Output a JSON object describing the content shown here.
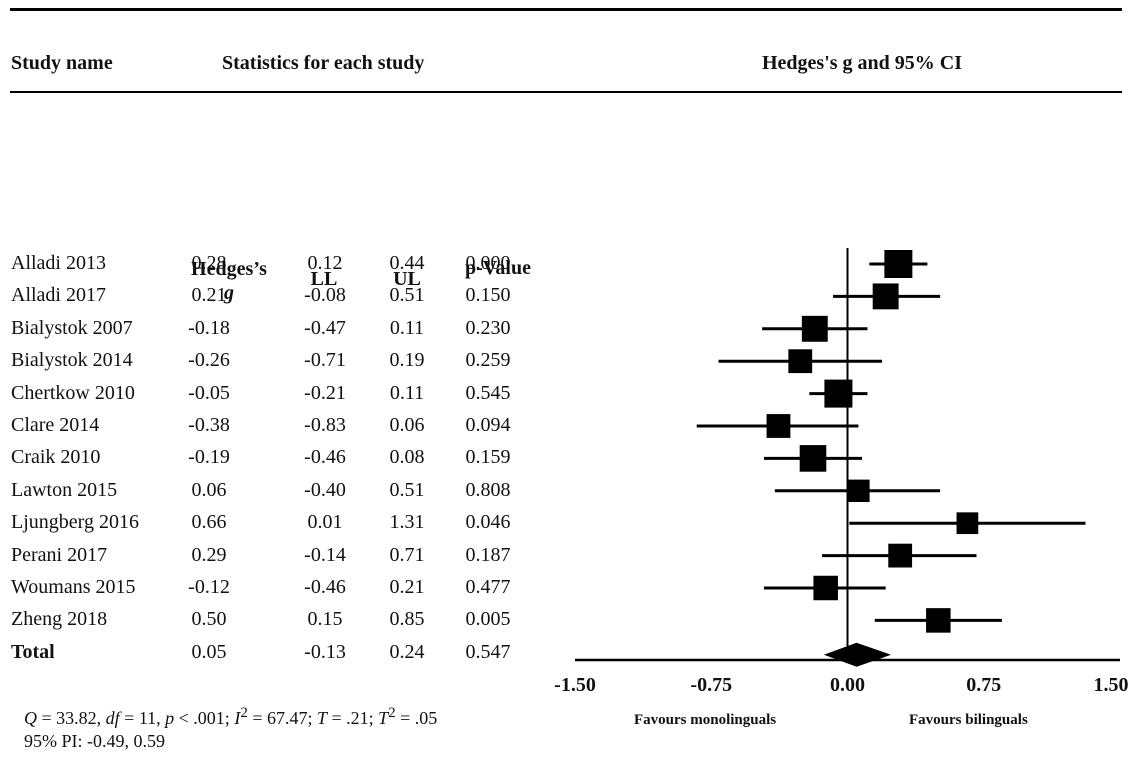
{
  "headers": {
    "study_name": "Study name",
    "statistics": "Statistics for each study",
    "plot": "Hedges's g and 95% CI"
  },
  "columns": {
    "g_line1": "Hedges’s",
    "g_line2": "g",
    "ll": "LL",
    "ul": "UL",
    "p": "p-Value"
  },
  "chart_data": {
    "type": "forest",
    "measure": "Hedges's g",
    "xlim": [
      -1.5,
      1.5
    ],
    "xticks": [
      "-1.50",
      "-0.75",
      "0.00",
      "0.75",
      "1.50"
    ],
    "xtick_values": [
      -1.5,
      -0.75,
      0.0,
      0.75,
      1.5
    ],
    "left_label": "Favours monolinguals",
    "right_label": "Favours bilinguals",
    "studies": [
      {
        "name": "Alladi 2013",
        "g": "0.28",
        "ll": "0.12",
        "ul": "0.44",
        "p": "0.000",
        "weight": 1.0
      },
      {
        "name": "Alladi 2017",
        "g": "0.21",
        "ll": "-0.08",
        "ul": "0.51",
        "p": "0.150",
        "weight": 0.85
      },
      {
        "name": "Bialystok 2007",
        "g": "-0.18",
        "ll": "-0.47",
        "ul": "0.11",
        "p": "0.230",
        "weight": 0.85
      },
      {
        "name": "Bialystok 2014",
        "g": "-0.26",
        "ll": "-0.71",
        "ul": "0.19",
        "p": "0.259",
        "weight": 0.7
      },
      {
        "name": "Chertkow 2010",
        "g": "-0.05",
        "ll": "-0.21",
        "ul": "0.11",
        "p": "0.545",
        "weight": 1.0
      },
      {
        "name": "Clare 2014",
        "g": "-0.38",
        "ll": "-0.83",
        "ul": "0.06",
        "p": "0.094",
        "weight": 0.7
      },
      {
        "name": "Craik 2010",
        "g": "-0.19",
        "ll": "-0.46",
        "ul": "0.08",
        "p": "0.159",
        "weight": 0.9
      },
      {
        "name": "Lawton 2015",
        "g": "0.06",
        "ll": "-0.40",
        "ul": "0.51",
        "p": "0.808",
        "weight": 0.6
      },
      {
        "name": "Ljungberg 2016",
        "g": "0.66",
        "ll": "0.01",
        "ul": "1.31",
        "p": "0.046",
        "weight": 0.55
      },
      {
        "name": "Perani 2017",
        "g": "0.29",
        "ll": "-0.14",
        "ul": "0.71",
        "p": "0.187",
        "weight": 0.7
      },
      {
        "name": "Woumans 2015",
        "g": "-0.12",
        "ll": "-0.46",
        "ul": "0.21",
        "p": "0.477",
        "weight": 0.75
      },
      {
        "name": "Zheng 2018",
        "g": "0.50",
        "ll": "0.15",
        "ul": "0.85",
        "p": "0.005",
        "weight": 0.75
      }
    ],
    "total": {
      "name": "Total",
      "g": "0.05",
      "ll": "-0.13",
      "ul": "0.24",
      "p": "0.547"
    }
  },
  "footer": {
    "stats_html": "<i>Q</i> = 33.82, <i>df</i> = 11, <i>p</i> &lt; .001; <i>I</i><sup>2</sup> = 67.47; <i>T</i> = .21; <i>T</i><sup>2</sup> = .05",
    "pi": "95% PI: -0.49, 0.59"
  }
}
